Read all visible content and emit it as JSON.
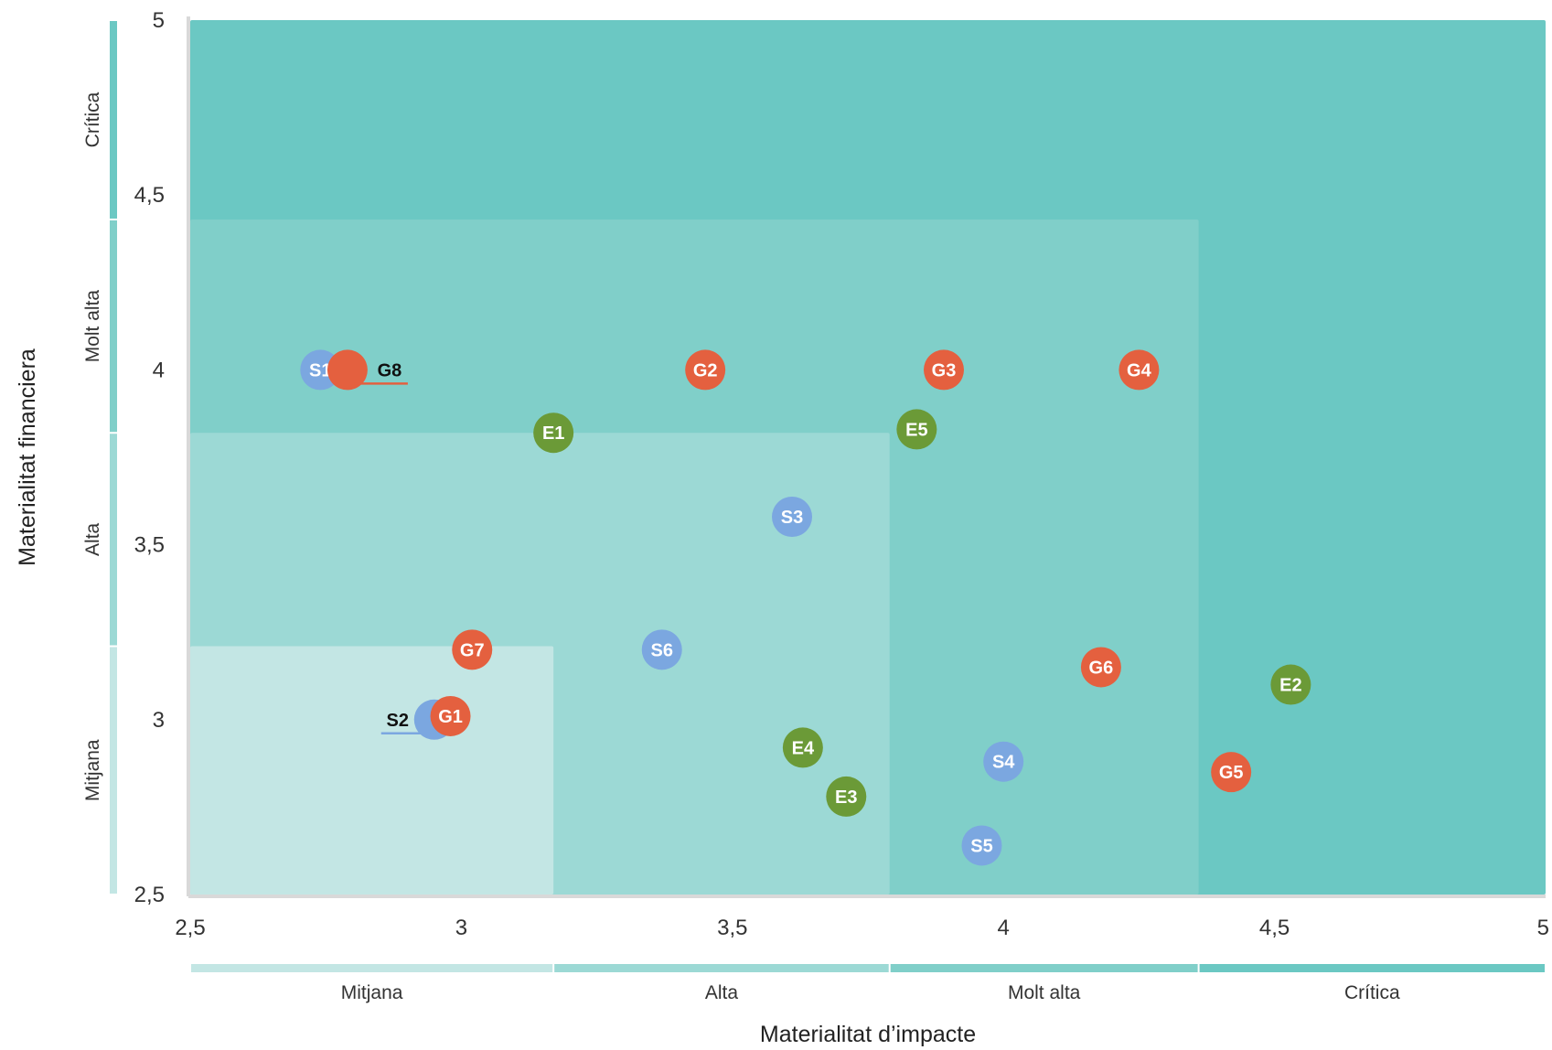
{
  "colors": {
    "zone_critica": "#6bc8c3",
    "zone_molt_alta": "#80cfc9",
    "zone_alta": "#9cd9d5",
    "zone_mitjana": "#c3e6e4",
    "environmental": "#6b9a37",
    "social": "#7ba7e0",
    "governance": "#e4603f",
    "axis": "#d9d9d9"
  },
  "chart_data": {
    "type": "scatter",
    "title": "",
    "xlabel": "Materialitat d’impacte",
    "ylabel": "Materialitat financiera",
    "xlim": [
      2.5,
      5
    ],
    "ylim": [
      2.5,
      5
    ],
    "x_ticks": [
      "2,5",
      "3",
      "3,5",
      "4",
      "4,5",
      "5"
    ],
    "y_ticks": [
      "2,5",
      "3",
      "3,5",
      "4",
      "4,5",
      "5"
    ],
    "x_bands": [
      {
        "label": "Mitjana",
        "from": 2.5,
        "to": 3.17
      },
      {
        "label": "Alta",
        "from": 3.17,
        "to": 3.79
      },
      {
        "label": "Molt alta",
        "from": 3.79,
        "to": 4.36
      },
      {
        "label": "Crítica",
        "from": 4.36,
        "to": 5
      }
    ],
    "y_bands": [
      {
        "label": "Mitjana",
        "from": 2.5,
        "to": 3.21
      },
      {
        "label": "Alta",
        "from": 3.21,
        "to": 3.82
      },
      {
        "label": "Molt alta",
        "from": 3.82,
        "to": 4.43
      },
      {
        "label": "Crítica",
        "from": 4.43,
        "to": 5
      }
    ],
    "grid": false,
    "legend": "none",
    "points": [
      {
        "label": "S1",
        "group": "social",
        "x": 2.74,
        "y": 4.0
      },
      {
        "label": "G8",
        "group": "governance",
        "x": 2.79,
        "y": 4.0,
        "label_outside": true
      },
      {
        "label": "G2",
        "group": "governance",
        "x": 3.45,
        "y": 4.0
      },
      {
        "label": "G3",
        "group": "governance",
        "x": 3.89,
        "y": 4.0
      },
      {
        "label": "G4",
        "group": "governance",
        "x": 4.25,
        "y": 4.0
      },
      {
        "label": "E1",
        "group": "environmental",
        "x": 3.17,
        "y": 3.82
      },
      {
        "label": "E5",
        "group": "environmental",
        "x": 3.84,
        "y": 3.83
      },
      {
        "label": "S3",
        "group": "social",
        "x": 3.61,
        "y": 3.58
      },
      {
        "label": "G7",
        "group": "governance",
        "x": 3.02,
        "y": 3.2
      },
      {
        "label": "S6",
        "group": "social",
        "x": 3.37,
        "y": 3.2
      },
      {
        "label": "G6",
        "group": "governance",
        "x": 4.18,
        "y": 3.15
      },
      {
        "label": "E2",
        "group": "environmental",
        "x": 4.53,
        "y": 3.1
      },
      {
        "label": "S2",
        "group": "social",
        "x": 2.95,
        "y": 3.0,
        "label_outside": true
      },
      {
        "label": "G1",
        "group": "governance",
        "x": 2.98,
        "y": 3.01
      },
      {
        "label": "E4",
        "group": "environmental",
        "x": 3.63,
        "y": 2.92
      },
      {
        "label": "S4",
        "group": "social",
        "x": 4.0,
        "y": 2.88
      },
      {
        "label": "G5",
        "group": "governance",
        "x": 4.42,
        "y": 2.85
      },
      {
        "label": "E3",
        "group": "environmental",
        "x": 3.71,
        "y": 2.78
      },
      {
        "label": "S5",
        "group": "social",
        "x": 3.96,
        "y": 2.64
      }
    ]
  }
}
